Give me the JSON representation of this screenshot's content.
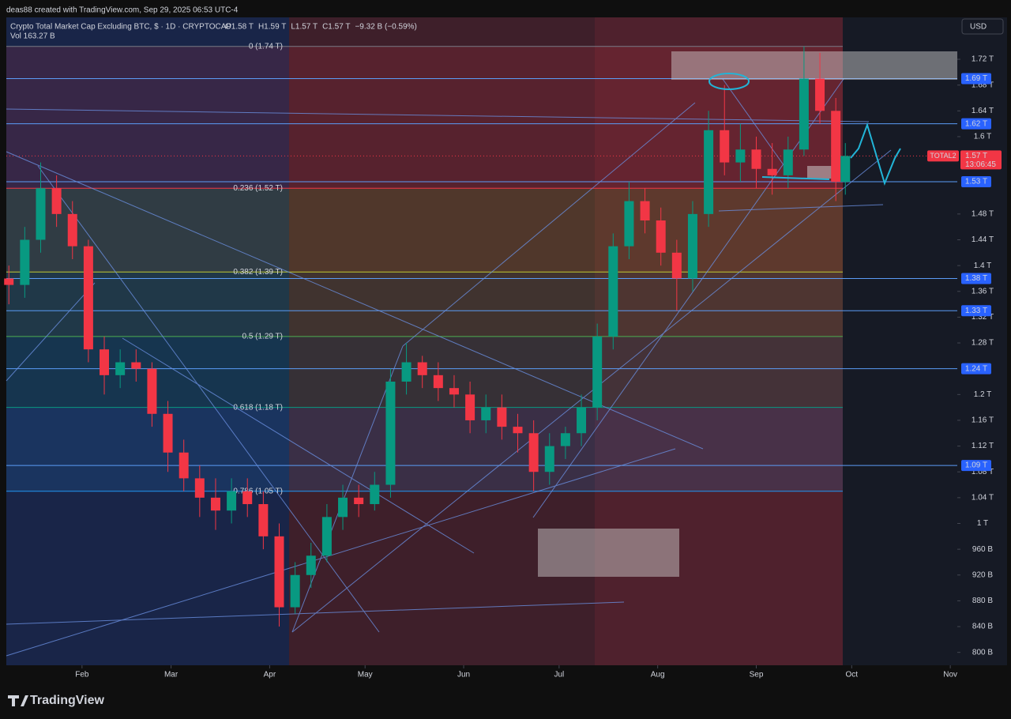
{
  "header": {
    "credit": "deas88 created with TradingView.com, Sep 29, 2025 06:53 UTC-4",
    "currency": "USD",
    "brand": "TradingView"
  },
  "chart_data": {
    "type": "candlestick",
    "title": "Crypto Total Market Cap Excluding BTC, $ · 1D · CRYPTOCAP",
    "ohlc_text": [
      "O1.58 T",
      "H1.59 T",
      "L1.57 T",
      "C1.57 T",
      "−9.32 B (−0.59%)"
    ],
    "volume_text": "Vol 163.27 B",
    "up_color": "#089981",
    "down_color": "#f23645",
    "x": [
      8,
      13,
      18,
      23,
      28,
      33,
      38,
      43,
      48,
      53,
      58,
      63,
      68,
      73,
      78,
      83,
      88,
      93,
      98,
      103,
      108,
      113,
      118,
      123,
      128,
      133,
      138,
      143,
      148,
      153,
      158,
      163,
      168,
      173,
      178,
      183,
      188,
      193,
      198,
      203,
      208,
      213,
      218,
      223,
      228,
      233,
      238,
      243,
      248,
      253,
      258,
      263,
      268,
      271
    ],
    "open": [
      1380,
      1370,
      1440,
      1520,
      1480,
      1430,
      1270,
      1230,
      1250,
      1240,
      1170,
      1110,
      1070,
      1040,
      1020,
      1050,
      1030,
      980,
      870,
      920,
      950,
      1010,
      1040,
      1030,
      1060,
      1220,
      1250,
      1230,
      1210,
      1200,
      1160,
      1180,
      1150,
      1140,
      1080,
      1120,
      1140,
      1180,
      1290,
      1430,
      1500,
      1470,
      1420,
      1380,
      1480,
      1610,
      1560,
      1580,
      1550,
      1540,
      1580,
      1690,
      1640,
      1530
    ],
    "high": [
      1400,
      1460,
      1560,
      1540,
      1500,
      1440,
      1290,
      1270,
      1270,
      1250,
      1190,
      1130,
      1090,
      1070,
      1070,
      1070,
      1050,
      1000,
      940,
      970,
      1030,
      1060,
      1060,
      1080,
      1240,
      1280,
      1260,
      1250,
      1230,
      1220,
      1200,
      1200,
      1170,
      1160,
      1140,
      1150,
      1200,
      1310,
      1450,
      1530,
      1520,
      1490,
      1440,
      1500,
      1640,
      1680,
      1620,
      1600,
      1590,
      1600,
      1740,
      1730,
      1660,
      1590
    ],
    "low": [
      1340,
      1350,
      1420,
      1460,
      1410,
      1250,
      1200,
      1210,
      1220,
      1150,
      1080,
      1050,
      1010,
      990,
      1000,
      1010,
      960,
      840,
      860,
      900,
      940,
      990,
      1010,
      1020,
      1040,
      1200,
      1210,
      1190,
      1180,
      1140,
      1140,
      1130,
      1110,
      1050,
      1060,
      1100,
      1120,
      1160,
      1270,
      1410,
      1450,
      1400,
      1330,
      1360,
      1460,
      1540,
      1530,
      1520,
      1510,
      1520,
      1570,
      1620,
      1500,
      1510
    ],
    "close": [
      1370,
      1440,
      1520,
      1480,
      1430,
      1270,
      1230,
      1250,
      1240,
      1170,
      1110,
      1070,
      1040,
      1020,
      1050,
      1030,
      980,
      870,
      920,
      950,
      1010,
      1040,
      1030,
      1060,
      1220,
      1250,
      1230,
      1210,
      1200,
      1160,
      1180,
      1150,
      1140,
      1080,
      1120,
      1140,
      1180,
      1290,
      1430,
      1500,
      1470,
      1420,
      1380,
      1480,
      1610,
      1560,
      1580,
      1550,
      1540,
      1580,
      1690,
      1640,
      1530,
      1570
    ],
    "xlim": [
      7.2,
      306.2
    ],
    "xticks": [
      {
        "value": 31,
        "label": "Feb"
      },
      {
        "value": 59,
        "label": "Mar"
      },
      {
        "value": 90,
        "label": "Apr"
      },
      {
        "value": 120,
        "label": "May"
      },
      {
        "value": 151,
        "label": "Jun"
      },
      {
        "value": 181,
        "label": "Jul"
      },
      {
        "value": 212,
        "label": "Aug"
      },
      {
        "value": 243,
        "label": "Sep"
      },
      {
        "value": 273,
        "label": "Oct"
      },
      {
        "value": 304,
        "label": "Nov"
      }
    ],
    "ylim": [
      780,
      1785
    ],
    "yticks": [
      {
        "value": 1720,
        "label": "1.72 T"
      },
      {
        "value": 1680,
        "label": "1.68 T"
      },
      {
        "value": 1640,
        "label": "1.64 T"
      },
      {
        "value": 1600,
        "label": "1.6 T"
      },
      {
        "value": 1480,
        "label": "1.48 T"
      },
      {
        "value": 1440,
        "label": "1.44 T"
      },
      {
        "value": 1400,
        "label": "1.4 T"
      },
      {
        "value": 1360,
        "label": "1.36 T"
      },
      {
        "value": 1320,
        "label": "1.32 T"
      },
      {
        "value": 1280,
        "label": "1.28 T"
      },
      {
        "value": 1200,
        "label": "1.2 T"
      },
      {
        "value": 1160,
        "label": "1.16 T"
      },
      {
        "value": 1120,
        "label": "1.12 T"
      },
      {
        "value": 1080,
        "label": "1.08 T"
      },
      {
        "value": 1040,
        "label": "1.04 T"
      },
      {
        "value": 1000,
        "label": "1 T"
      },
      {
        "value": 960,
        "label": "960 B"
      },
      {
        "value": 920,
        "label": "920 B"
      },
      {
        "value": 880,
        "label": "880 B"
      },
      {
        "value": 840,
        "label": "840 B"
      },
      {
        "value": 800,
        "label": "800 B"
      }
    ],
    "price_lines": [
      {
        "value": 1690,
        "label": "1.69 T"
      },
      {
        "value": 1620,
        "label": "1.62 T"
      },
      {
        "value": 1530,
        "label": "1.53 T"
      },
      {
        "value": 1380,
        "label": "1.38 T"
      },
      {
        "value": 1330,
        "label": "1.33 T"
      },
      {
        "value": 1240,
        "label": "1.24 T"
      },
      {
        "value": 1090,
        "label": "1.09 T"
      }
    ],
    "line_color": "#5b9cf6",
    "last_price": {
      "value": 1570,
      "label": "1.57 T",
      "countdown": "13:06:45",
      "symbol": "TOTAL2"
    },
    "fib_levels": [
      {
        "value": 1740,
        "label": "0 (1.74 T)",
        "color": "#787b86"
      },
      {
        "value": 1520,
        "label": "0.236 (1.52 T)",
        "color": "#f23645"
      },
      {
        "value": 1390,
        "label": "0.382 (1.39 T)",
        "color": "#c0ca33"
      },
      {
        "value": 1290,
        "label": "0.5 (1.29 T)",
        "color": "#4caf50"
      },
      {
        "value": 1180,
        "label": "0.618 (1.18 T)",
        "color": "#089981"
      },
      {
        "value": 1050,
        "label": "0.786 (1.05 T)",
        "color": "#2196f3"
      }
    ]
  }
}
